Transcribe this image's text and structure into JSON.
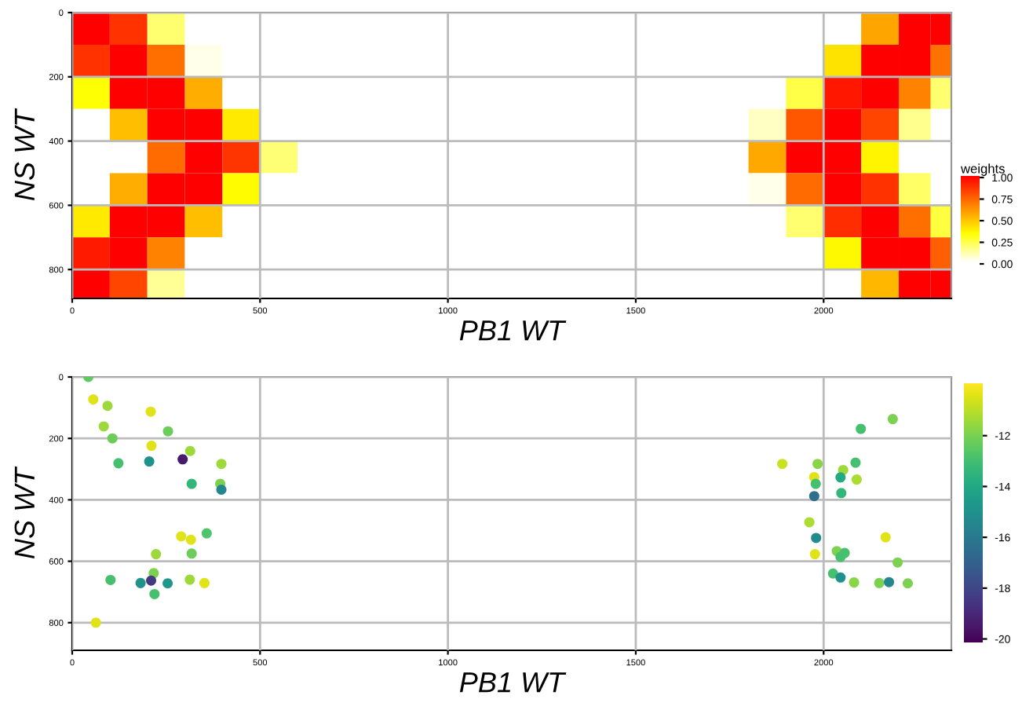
{
  "chart_data": [
    {
      "type": "heatmap",
      "xlabel": "PB1 WT",
      "ylabel": "NS WT",
      "clabel": "weights",
      "x": [
        50,
        150,
        250,
        350,
        450,
        550,
        650,
        750,
        850,
        950,
        1050,
        1150,
        1250,
        1350,
        1450,
        1550,
        1650,
        1750,
        1850,
        1950,
        2050,
        2150,
        2250,
        2320
      ],
      "y": [
        50,
        150,
        250,
        350,
        450,
        550,
        650,
        750,
        850
      ],
      "cells": [
        [
          1,
          0.87,
          0.19,
          0,
          0,
          0,
          0,
          0,
          0,
          0,
          0,
          0,
          0,
          0,
          0,
          0,
          0,
          0,
          0,
          0,
          0,
          0.57,
          1,
          1
        ],
        [
          0.87,
          1,
          0.71,
          0.03,
          0,
          0,
          0,
          0,
          0,
          0,
          0,
          0,
          0,
          0,
          0,
          0,
          0,
          0,
          0,
          0,
          0.41,
          1,
          1,
          0.7
        ],
        [
          0.33,
          1,
          1,
          0.55,
          0,
          0,
          0,
          0,
          0,
          0,
          0,
          0,
          0,
          0,
          0,
          0,
          0,
          0,
          0,
          0.24,
          0.94,
          1,
          0.66,
          0.19
        ],
        [
          0,
          0.5,
          1,
          1,
          0.39,
          0,
          0,
          0,
          0,
          0,
          0,
          0,
          0,
          0,
          0,
          0,
          0,
          0,
          0.08,
          0.77,
          1,
          0.82,
          0.15,
          0
        ],
        [
          0,
          0,
          0.72,
          1,
          0.86,
          0.18,
          0,
          0,
          0,
          0,
          0,
          0,
          0,
          0,
          0,
          0,
          0,
          0,
          0.56,
          1,
          1,
          0.36,
          0,
          0
        ],
        [
          0,
          0.55,
          1,
          1,
          0.34,
          0,
          0,
          0,
          0,
          0,
          0,
          0,
          0,
          0,
          0,
          0,
          0,
          0,
          0.03,
          0.72,
          1,
          0.87,
          0.2,
          0
        ],
        [
          0.39,
          1,
          1,
          0.5,
          0,
          0,
          0,
          0,
          0,
          0,
          0,
          0,
          0,
          0,
          0,
          0,
          0,
          0,
          0,
          0.19,
          0.88,
          1,
          0.71,
          0.25
        ],
        [
          0.93,
          1,
          0.66,
          0,
          0,
          0,
          0,
          0,
          0,
          0,
          0,
          0,
          0,
          0,
          0,
          0,
          0,
          0,
          0,
          0,
          0.35,
          1,
          1,
          0.75
        ],
        [
          1,
          0.82,
          0.14,
          0,
          0,
          0,
          0,
          0,
          0,
          0,
          0,
          0,
          0,
          0,
          0,
          0,
          0,
          0,
          0,
          0,
          0,
          0.52,
          1,
          1
        ]
      ],
      "colors": [
        "#ffffff",
        "#ffff00",
        "#ff8000",
        "#ff0000"
      ],
      "clim": [
        0,
        1
      ],
      "cticks": [
        {
          "value": 0,
          "label": "0.00"
        },
        {
          "value": 0.25,
          "label": "0.25"
        },
        {
          "value": 0.5,
          "label": "0.50"
        },
        {
          "value": 0.75,
          "label": "0.75"
        },
        {
          "value": 1,
          "label": "1.00"
        }
      ],
      "xlim": [
        0,
        2340
      ],
      "ylim": [
        890,
        0
      ],
      "xticks": [
        0,
        500,
        1000,
        1500,
        2000
      ],
      "yticks": [
        0,
        200,
        400,
        600,
        800
      ],
      "grid": true
    },
    {
      "type": "scatter",
      "xlabel": "PB1 WT",
      "ylabel": "NS WT",
      "x": [
        43,
        56,
        94,
        209,
        84,
        107,
        255,
        211,
        314,
        123,
        205,
        294,
        397,
        318,
        394,
        397,
        290,
        316,
        358,
        223,
        318,
        217,
        102,
        182,
        210,
        254,
        313,
        352,
        219,
        63,
        2184,
        2099,
        1890,
        1984,
        2085,
        2052,
        1975,
        2045,
        2088,
        1979,
        2047,
        1975,
        1962,
        1980,
        2165,
        1977,
        2035,
        2056,
        2045,
        2197,
        2025,
        2045,
        2081,
        2148,
        2174,
        2224
      ],
      "values": [
        0,
        73,
        94,
        113,
        161,
        200,
        177,
        224,
        241,
        281,
        275,
        268,
        283,
        348,
        348,
        367,
        519,
        530,
        509,
        577,
        575,
        639,
        661,
        671,
        663,
        672,
        660,
        671,
        707,
        800,
        137,
        169,
        283,
        283,
        279,
        303,
        326,
        327,
        334,
        348,
        378,
        388,
        473,
        524,
        522,
        577,
        567,
        573,
        586,
        604,
        640,
        653,
        669,
        671,
        668,
        672
      ],
      "cvalues": [
        -12.5,
        -10.5,
        -11.5,
        -10.5,
        -11.5,
        -12.3,
        -12.3,
        -10.5,
        -11.5,
        -13,
        -15,
        -19.5,
        -11.5,
        -13.5,
        -12,
        -15.5,
        -10.5,
        -10.5,
        -12.8,
        -11.5,
        -12.3,
        -12,
        -13,
        -15,
        -18.5,
        -14.8,
        -11.5,
        -10.5,
        -13,
        -10.5,
        -12,
        -13,
        -10.8,
        -11.8,
        -13,
        -11.5,
        -10.5,
        -14,
        -11.3,
        -13,
        -13.5,
        -16.5,
        -11.3,
        -15.3,
        -10.5,
        -10.5,
        -12,
        -13,
        -13,
        -12,
        -13,
        -15,
        -11.8,
        -12,
        -15.5,
        -12
      ],
      "clim": [
        -20.2,
        -10
      ],
      "cticks": [
        -20,
        -18,
        -16,
        -14,
        -12
      ],
      "xlim": [
        0,
        2340
      ],
      "ylim": [
        890,
        0
      ],
      "xticks": [
        0,
        500,
        1000,
        1500,
        2000
      ],
      "yticks": [
        0,
        200,
        400,
        600,
        800
      ],
      "grid": true
    }
  ]
}
